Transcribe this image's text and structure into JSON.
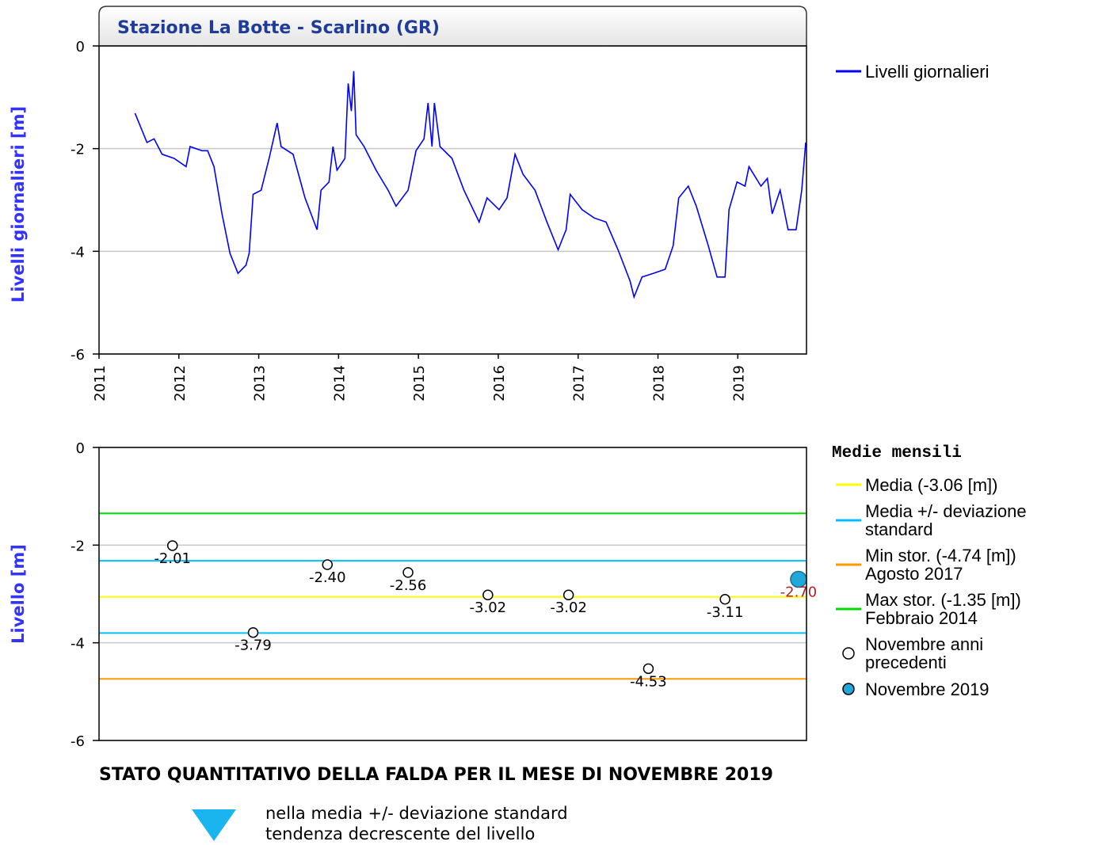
{
  "chart_data": [
    {
      "type": "line",
      "title": "Stazione La Botte - Scarlino (GR)",
      "ylabel": "Livelli giornalieri [m]",
      "x": [
        2011.45,
        2011.6,
        2011.69,
        2011.79,
        2011.94,
        2012.09,
        2012.14,
        2012.29,
        2012.36,
        2012.44,
        2012.54,
        2012.64,
        2012.74,
        2012.84,
        2012.88,
        2012.93,
        2013.03,
        2013.13,
        2013.23,
        2013.28,
        2013.43,
        2013.58,
        2013.73,
        2013.78,
        2013.88,
        2013.93,
        2013.98,
        2014.08,
        2014.12,
        2014.16,
        2014.19,
        2014.22,
        2014.32,
        2014.47,
        2014.62,
        2014.72,
        2014.87,
        2014.97,
        2015.07,
        2015.12,
        2015.17,
        2015.2,
        2015.27,
        2015.42,
        2015.57,
        2015.76,
        2015.86,
        2016.01,
        2016.11,
        2016.21,
        2016.31,
        2016.46,
        2016.61,
        2016.75,
        2016.85,
        2016.9,
        2017.05,
        2017.2,
        2017.35,
        2017.5,
        2017.65,
        2017.7,
        2017.8,
        2017.94,
        2018.09,
        2018.19,
        2018.26,
        2018.38,
        2018.48,
        2018.63,
        2018.74,
        2018.84,
        2018.89,
        2018.99,
        2019.09,
        2019.14,
        2019.29,
        2019.37,
        2019.43,
        2019.53,
        2019.63,
        2019.73,
        2019.8,
        2019.85
      ],
      "series": [
        {
          "name": "Livelli giornalieri",
          "color": "#0000ff",
          "values": [
            -1.31,
            -1.88,
            -1.81,
            -2.11,
            -2.19,
            -2.35,
            -1.96,
            -2.04,
            -2.04,
            -2.35,
            -3.27,
            -4.04,
            -4.43,
            -4.27,
            -4.04,
            -2.89,
            -2.81,
            -2.19,
            -1.5,
            -1.96,
            -2.11,
            -2.96,
            -3.58,
            -2.81,
            -2.65,
            -1.96,
            -2.42,
            -2.19,
            -0.73,
            -1.27,
            -0.49,
            -1.73,
            -1.96,
            -2.42,
            -2.81,
            -3.12,
            -2.81,
            -2.04,
            -1.81,
            -1.11,
            -1.96,
            -1.11,
            -1.96,
            -2.19,
            -2.81,
            -3.43,
            -2.96,
            -3.19,
            -2.96,
            -2.11,
            -2.5,
            -2.81,
            -3.43,
            -3.97,
            -3.58,
            -2.89,
            -3.19,
            -3.35,
            -3.43,
            -3.97,
            -4.58,
            -4.89,
            -4.5,
            -4.43,
            -4.35,
            -3.89,
            -2.96,
            -2.73,
            -3.12,
            -3.89,
            -4.5,
            -4.5,
            -3.19,
            -2.65,
            -2.73,
            -2.35,
            -2.73,
            -2.58,
            -3.27,
            -2.81,
            -3.58,
            -3.58,
            -2.81,
            -1.88
          ]
        }
      ],
      "xlim": [
        2011,
        2019.86
      ],
      "xticks": [
        2011,
        2012,
        2013,
        2014,
        2015,
        2016,
        2017,
        2018,
        2019
      ],
      "ylim": [
        -6,
        0
      ],
      "yticks": [
        0,
        -2,
        -4,
        -6
      ],
      "grid": true
    },
    {
      "type": "scatter",
      "ylabel": "Livello [m]",
      "legend_title": "Medie mensili",
      "xlim": [
        2011,
        2019.86
      ],
      "ylim": [
        -6,
        0
      ],
      "yticks": [
        0,
        -2,
        -4,
        -6
      ],
      "grid": true,
      "reference_lines": [
        {
          "name": "Media (-3.06 [m])",
          "color": "#ffff00",
          "values": [
            -3.06
          ]
        },
        {
          "name": "Media +/- deviazione standard",
          "color": "#00bfff",
          "values": [
            -2.32,
            -3.8
          ]
        },
        {
          "name": "Min stor. (-4.74 [m]) Agosto 2017",
          "color": "#ff9900",
          "values": [
            -4.74
          ]
        },
        {
          "name": "Max stor. (-1.35 [m]) Febbraio 2014",
          "color": "#00dd00",
          "values": [
            -1.35
          ]
        }
      ],
      "series": [
        {
          "name": "Novembre anni precedenti",
          "color": "#ffffff",
          "label_color": "#000000",
          "x": [
            2011.92,
            2012.93,
            2013.86,
            2014.87,
            2015.87,
            2016.88,
            2017.88,
            2018.84
          ],
          "values": [
            -2.01,
            -3.79,
            -2.4,
            -2.56,
            -3.02,
            -3.02,
            -4.53,
            -3.11
          ],
          "value_labels": [
            "-2.01",
            "-3.79",
            "-2.40",
            "-2.56",
            "-3.02",
            "-3.02",
            "-4.53",
            "-3.11"
          ]
        },
        {
          "name": "Novembre 2019",
          "color": "#1fa8d8",
          "label_color": "#b22222",
          "x": [
            2019.76
          ],
          "values": [
            -2.7
          ],
          "value_labels": [
            "-2.70"
          ]
        }
      ]
    }
  ],
  "status": {
    "title": "STATO QUANTITATIVO DELLA FALDA PER IL MESE DI NOVEMBRE 2019",
    "lines": [
      "nella media +/- deviazione standard",
      "tendenza decrescente del livello"
    ]
  }
}
